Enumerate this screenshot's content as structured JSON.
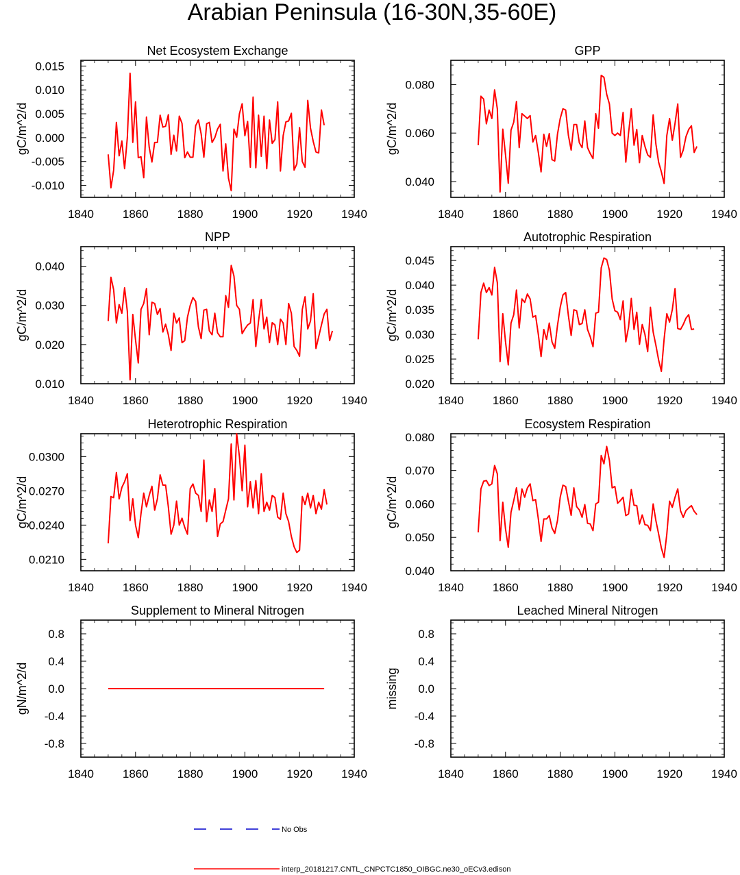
{
  "page_title": "Arabian Peninsula (16-30N,35-60E)",
  "colors": {
    "model_line": "#ff0000",
    "obs_line": "#0000cc",
    "axis": "#000000"
  },
  "legend": {
    "obs_label": "No Obs",
    "model_label": "interp_20181217.CNTL_CNPCTC1850_OIBGC.ne30_oECv3.edison"
  },
  "chart_data": [
    {
      "type": "line",
      "title": "Net Ecosystem Exchange",
      "xlabel": "",
      "ylabel": "gC/m^2/d",
      "xlim": [
        1840,
        1940
      ],
      "ylim": [
        -0.0125,
        0.0162
      ],
      "x_ticks": [
        1840,
        1860,
        1880,
        1900,
        1920,
        1940
      ],
      "y_ticks": [
        -0.01,
        -0.005,
        0.0,
        0.005,
        0.01,
        0.015
      ],
      "y_tick_labels": [
        "-0.010",
        "-0.005",
        "0.000",
        "0.005",
        "0.010",
        "0.015"
      ],
      "series": [
        {
          "name": "interp_20181217.CNTL_CNPCTC1850_OIBGC.ne30_oECv3.edison",
          "x_start": 1850,
          "values": [
            -0.0035,
            -0.0105,
            -0.0068,
            0.0032,
            -0.0038,
            -0.0007,
            -0.0065,
            0.0,
            0.0135,
            -0.001,
            0.0075,
            -0.0042,
            -0.004,
            -0.0084,
            0.0043,
            -0.002,
            -0.0051,
            -0.001,
            -0.001,
            0.0047,
            0.0022,
            0.0024,
            0.0048,
            -0.0035,
            0.0005,
            -0.0028,
            0.0045,
            0.003,
            -0.0042,
            -0.003,
            -0.0041,
            -0.0041,
            0.0025,
            0.0037,
            0.0008,
            -0.0041,
            0.0029,
            0.0032,
            -0.001,
            0.0,
            0.0018,
            0.0028,
            -0.007,
            -0.0013,
            -0.0085,
            -0.0111,
            0.0018,
            0.0001,
            0.005,
            0.0071,
            0.0004,
            0.0034,
            -0.0062,
            0.0085,
            -0.0063,
            0.0047,
            -0.0039,
            0.0045,
            -0.0065,
            0.0037,
            -0.0012,
            -0.0004,
            0.0075,
            -0.007,
            0.0004,
            0.0033,
            0.0035,
            0.0051,
            -0.0068,
            -0.0055,
            0.0021,
            -0.005,
            -0.0062,
            0.0078,
            0.002,
            -0.0008,
            -0.003,
            -0.0032,
            0.0058,
            0.0026
          ]
        }
      ]
    },
    {
      "type": "line",
      "title": "GPP",
      "xlabel": "",
      "ylabel": "gC/m^2/d",
      "xlim": [
        1840,
        1940
      ],
      "ylim": [
        0.0335,
        0.09
      ],
      "x_ticks": [
        1840,
        1860,
        1880,
        1900,
        1920,
        1940
      ],
      "y_ticks": [
        0.04,
        0.06,
        0.08
      ],
      "y_tick_labels": [
        "0.040",
        "0.060",
        "0.080"
      ],
      "series": [
        {
          "name": "interp_20181217.CNTL_CNPCTC1850_OIBGC.ne30_oECv3.edison",
          "x_start": 1850,
          "values": [
            0.055,
            0.0752,
            0.074,
            0.0638,
            0.0695,
            0.066,
            0.0778,
            0.07,
            0.0357,
            0.0616,
            0.051,
            0.0393,
            0.0612,
            0.0645,
            0.073,
            0.054,
            0.068,
            0.067,
            0.066,
            0.0672,
            0.0563,
            0.059,
            0.052,
            0.044,
            0.0595,
            0.0545,
            0.0598,
            0.049,
            0.0485,
            0.0595,
            0.066,
            0.07,
            0.0695,
            0.059,
            0.053,
            0.0635,
            0.0635,
            0.056,
            0.054,
            0.065,
            0.054,
            0.0515,
            0.0495,
            0.068,
            0.062,
            0.0838,
            0.083,
            0.076,
            0.072,
            0.06,
            0.059,
            0.06,
            0.059,
            0.0685,
            0.048,
            0.06,
            0.07,
            0.055,
            0.0615,
            0.0478,
            0.059,
            0.0545,
            0.051,
            0.05,
            0.0675,
            0.0555,
            0.048,
            0.044,
            0.0392,
            0.059,
            0.066,
            0.057,
            0.064,
            0.072,
            0.05,
            0.053,
            0.0585,
            0.0615,
            0.063,
            0.052,
            0.0545
          ]
        }
      ]
    },
    {
      "type": "line",
      "title": "NPP",
      "xlabel": "",
      "ylabel": "gC/m^2/d",
      "xlim": [
        1840,
        1940
      ],
      "ylim": [
        0.01,
        0.045
      ],
      "x_ticks": [
        1840,
        1860,
        1880,
        1900,
        1920,
        1940
      ],
      "y_ticks": [
        0.01,
        0.02,
        0.03,
        0.04
      ],
      "y_tick_labels": [
        "0.010",
        "0.020",
        "0.030",
        "0.040"
      ],
      "series": [
        {
          "name": "interp_20181217.CNTL_CNPCTC1850_OIBGC.ne30_oECv3.edison",
          "x_start": 1850,
          "values": [
            0.026,
            0.0372,
            0.034,
            0.0255,
            0.0302,
            0.028,
            0.0345,
            0.0285,
            0.011,
            0.0277,
            0.0212,
            0.0153,
            0.029,
            0.0305,
            0.0343,
            0.0225,
            0.0308,
            0.0305,
            0.0277,
            0.0292,
            0.0232,
            0.0252,
            0.0225,
            0.0185,
            0.028,
            0.0255,
            0.0268,
            0.0205,
            0.021,
            0.027,
            0.03,
            0.032,
            0.031,
            0.0245,
            0.0215,
            0.0288,
            0.029,
            0.0235,
            0.0225,
            0.028,
            0.023,
            0.022,
            0.022,
            0.0325,
            0.0295,
            0.0402,
            0.0375,
            0.03,
            0.029,
            0.0228,
            0.024,
            0.025,
            0.0255,
            0.0315,
            0.0195,
            0.026,
            0.0315,
            0.024,
            0.027,
            0.0205,
            0.0256,
            0.025,
            0.02,
            0.0265,
            0.0255,
            0.02,
            0.0305,
            0.028,
            0.0195,
            0.0185,
            0.017,
            0.029,
            0.0322,
            0.024,
            0.026,
            0.033,
            0.019,
            0.022,
            0.025,
            0.0278,
            0.029,
            0.021,
            0.0235
          ]
        }
      ]
    },
    {
      "type": "line",
      "title": "Autotrophic Respiration",
      "xlabel": "",
      "ylabel": "gC/m^2/d",
      "xlim": [
        1840,
        1940
      ],
      "ylim": [
        0.02,
        0.0478
      ],
      "x_ticks": [
        1840,
        1860,
        1880,
        1900,
        1920,
        1940
      ],
      "y_ticks": [
        0.02,
        0.025,
        0.03,
        0.035,
        0.04,
        0.045
      ],
      "y_tick_labels": [
        "0.020",
        "0.025",
        "0.030",
        "0.035",
        "0.040",
        "0.045"
      ],
      "series": [
        {
          "name": "interp_20181217.CNTL_CNPCTC1850_OIBGC.ne30_oECv3.edison",
          "x_start": 1850,
          "values": [
            0.029,
            0.0385,
            0.0404,
            0.0385,
            0.0395,
            0.038,
            0.0436,
            0.0405,
            0.0245,
            0.0342,
            0.0285,
            0.0238,
            0.0323,
            0.034,
            0.039,
            0.0313,
            0.0372,
            0.0365,
            0.0382,
            0.0372,
            0.0335,
            0.0338,
            0.03,
            0.0255,
            0.031,
            0.029,
            0.0323,
            0.0285,
            0.0272,
            0.0318,
            0.0355,
            0.038,
            0.0385,
            0.0338,
            0.0298,
            0.035,
            0.0348,
            0.032,
            0.0322,
            0.035,
            0.031,
            0.0295,
            0.0275,
            0.0343,
            0.0345,
            0.0435,
            0.0455,
            0.0452,
            0.043,
            0.0372,
            0.0348,
            0.0345,
            0.033,
            0.0368,
            0.0285,
            0.0315,
            0.0373,
            0.031,
            0.0345,
            0.028,
            0.032,
            0.03,
            0.0265,
            0.0355,
            0.0305,
            0.0278,
            0.0248,
            0.0225,
            0.029,
            0.0342,
            0.0325,
            0.035,
            0.0393,
            0.0312,
            0.031,
            0.032,
            0.0333,
            0.034,
            0.031,
            0.0311
          ]
        }
      ]
    },
    {
      "type": "line",
      "title": "Heterotrophic Respiration",
      "xlabel": "",
      "ylabel": "gC/m^2/d",
      "xlim": [
        1840,
        1940
      ],
      "ylim": [
        0.02,
        0.032
      ],
      "x_ticks": [
        1840,
        1860,
        1880,
        1900,
        1920,
        1940
      ],
      "y_ticks": [
        0.021,
        0.024,
        0.027,
        0.03
      ],
      "y_tick_labels": [
        "0.0210",
        "0.0240",
        "0.0270",
        "0.0300"
      ],
      "series": [
        {
          "name": "interp_20181217.CNTL_CNPCTC1850_OIBGC.ne30_oECv3.edison",
          "x_start": 1850,
          "values": [
            0.0224,
            0.0265,
            0.0264,
            0.0286,
            0.0263,
            0.0273,
            0.0278,
            0.0285,
            0.0244,
            0.0263,
            0.024,
            0.0229,
            0.025,
            0.0268,
            0.0256,
            0.0266,
            0.0274,
            0.0253,
            0.0263,
            0.0284,
            0.0275,
            0.0275,
            0.0256,
            0.0232,
            0.024,
            0.0261,
            0.024,
            0.0246,
            0.0238,
            0.0232,
            0.0272,
            0.0276,
            0.0268,
            0.0266,
            0.0252,
            0.0297,
            0.0243,
            0.0262,
            0.0252,
            0.0272,
            0.023,
            0.0241,
            0.0243,
            0.0253,
            0.0263,
            0.0311,
            0.0262,
            0.032,
            0.03,
            0.027,
            0.031,
            0.0256,
            0.0278,
            0.0255,
            0.0279,
            0.025,
            0.0285,
            0.0252,
            0.026,
            0.0253,
            0.0266,
            0.0264,
            0.0247,
            0.0245,
            0.0268,
            0.025,
            0.0243,
            0.023,
            0.0221,
            0.0216,
            0.0218,
            0.0265,
            0.0258,
            0.0268,
            0.0255,
            0.0266,
            0.025,
            0.026,
            0.0254,
            0.0271,
            0.0258
          ]
        }
      ]
    },
    {
      "type": "line",
      "title": "Ecosystem Respiration",
      "xlabel": "",
      "ylabel": "gC/m^2/d",
      "xlim": [
        1840,
        1940
      ],
      "ylim": [
        0.04,
        0.081
      ],
      "x_ticks": [
        1840,
        1860,
        1880,
        1900,
        1920,
        1940
      ],
      "y_ticks": [
        0.04,
        0.05,
        0.06,
        0.07,
        0.08
      ],
      "y_tick_labels": [
        "0.040",
        "0.050",
        "0.060",
        "0.070",
        "0.080"
      ],
      "series": [
        {
          "name": "interp_20181217.CNTL_CNPCTC1850_OIBGC.ne30_oECv3.edison",
          "x_start": 1850,
          "values": [
            0.0515,
            0.0645,
            0.0668,
            0.067,
            0.0655,
            0.066,
            0.0715,
            0.069,
            0.049,
            0.0605,
            0.0525,
            0.047,
            0.0575,
            0.061,
            0.0648,
            0.0582,
            0.0645,
            0.062,
            0.0648,
            0.066,
            0.061,
            0.0613,
            0.0555,
            0.0488,
            0.0555,
            0.0555,
            0.0565,
            0.0528,
            0.0512,
            0.055,
            0.062,
            0.0656,
            0.0652,
            0.0608,
            0.0566,
            0.0648,
            0.0592,
            0.0582,
            0.056,
            0.0598,
            0.0542,
            0.054,
            0.052,
            0.06,
            0.0605,
            0.0745,
            0.072,
            0.0772,
            0.073,
            0.0648,
            0.0652,
            0.0602,
            0.061,
            0.062,
            0.0565,
            0.057,
            0.0643,
            0.0596,
            0.0595,
            0.054,
            0.0567,
            0.0538,
            0.0536,
            0.052,
            0.06,
            0.055,
            0.051,
            0.0468,
            0.044,
            0.051,
            0.0608,
            0.059,
            0.062,
            0.0645,
            0.058,
            0.056,
            0.058,
            0.0588,
            0.0595,
            0.0578,
            0.0568
          ]
        }
      ]
    },
    {
      "type": "line",
      "title": "Supplement to Mineral Nitrogen",
      "xlabel": "",
      "ylabel": "gN/m^2/d",
      "xlim": [
        1840,
        1940
      ],
      "ylim": [
        -1.0,
        1.0
      ],
      "x_ticks": [
        1840,
        1860,
        1880,
        1900,
        1920,
        1940
      ],
      "y_ticks": [
        -0.8,
        -0.4,
        0.0,
        0.4,
        0.8
      ],
      "y_tick_labels": [
        "-0.8",
        "-0.4",
        "0.0",
        "0.4",
        "0.8"
      ],
      "series": [
        {
          "name": "interp_20181217.CNTL_CNPCTC1850_OIBGC.ne30_oECv3.edison",
          "x_start": 1850,
          "values": [
            0,
            0,
            0,
            0,
            0,
            0,
            0,
            0,
            0,
            0,
            0,
            0,
            0,
            0,
            0,
            0,
            0,
            0,
            0,
            0,
            0,
            0,
            0,
            0,
            0,
            0,
            0,
            0,
            0,
            0,
            0,
            0,
            0,
            0,
            0,
            0,
            0,
            0,
            0,
            0,
            0,
            0,
            0,
            0,
            0,
            0,
            0,
            0,
            0,
            0,
            0,
            0,
            0,
            0,
            0,
            0,
            0,
            0,
            0,
            0,
            0,
            0,
            0,
            0,
            0,
            0,
            0,
            0,
            0,
            0,
            0,
            0,
            0,
            0,
            0,
            0,
            0,
            0,
            0,
            0
          ]
        }
      ]
    },
    {
      "type": "line",
      "title": "Leached Mineral Nitrogen",
      "xlabel": "",
      "ylabel": "missing",
      "xlim": [
        1840,
        1940
      ],
      "ylim": [
        -1.0,
        1.0
      ],
      "x_ticks": [
        1840,
        1860,
        1880,
        1900,
        1920,
        1940
      ],
      "y_ticks": [
        -0.8,
        -0.4,
        0.0,
        0.4,
        0.8
      ],
      "y_tick_labels": [
        "-0.8",
        "-0.4",
        "0.0",
        "0.4",
        "0.8"
      ],
      "series": []
    }
  ]
}
